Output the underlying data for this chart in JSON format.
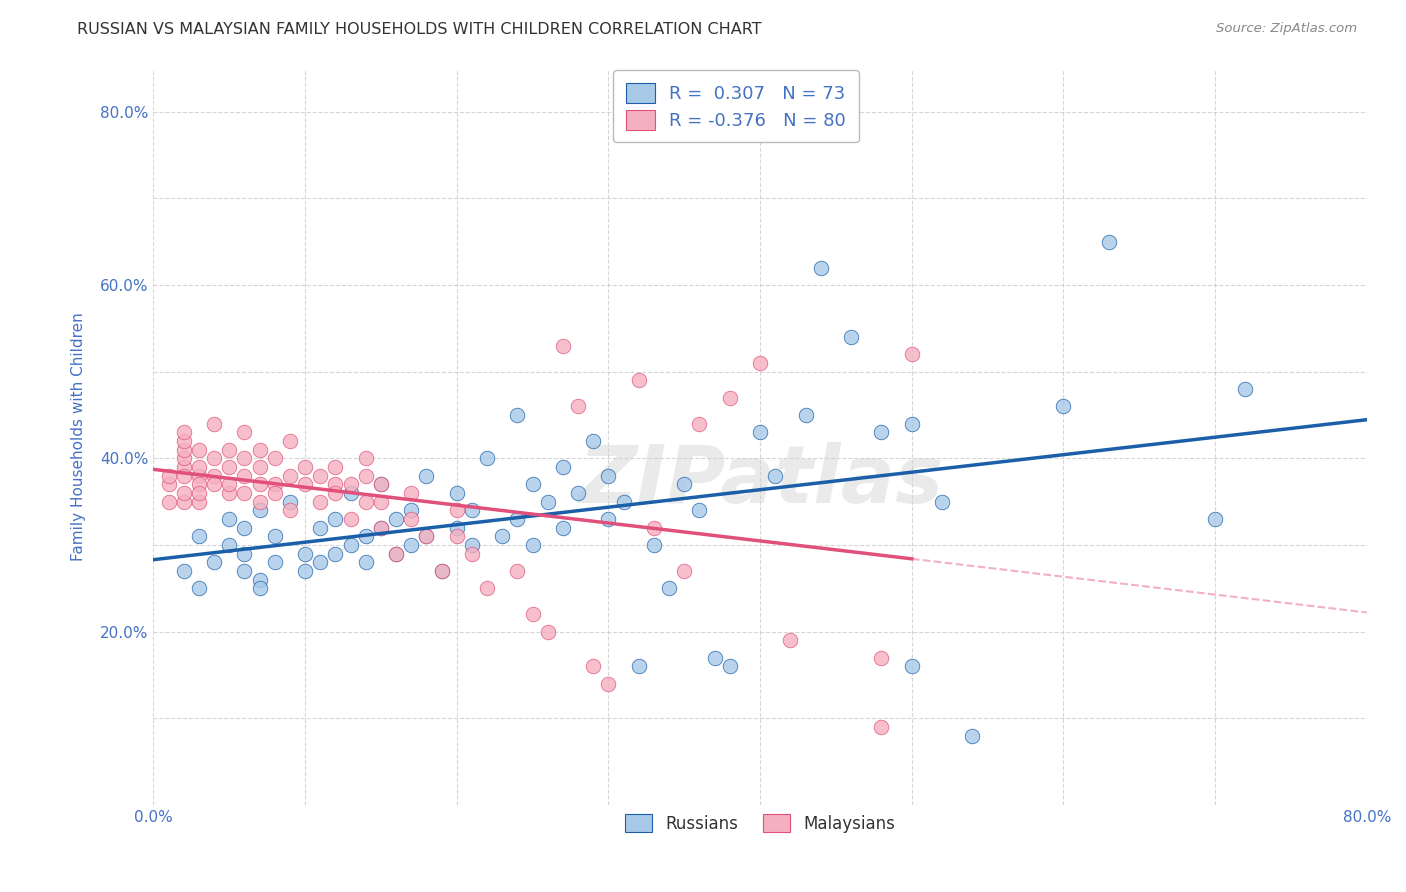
{
  "title": "RUSSIAN VS MALAYSIAN FAMILY HOUSEHOLDS WITH CHILDREN CORRELATION CHART",
  "source": "Source: ZipAtlas.com",
  "ylabel": "Family Households with Children",
  "xlim": [
    0.0,
    0.8
  ],
  "ylim": [
    0.0,
    0.85
  ],
  "russian_R": "0.307",
  "russian_N": "73",
  "malaysian_R": "-0.376",
  "malaysian_N": "80",
  "russian_color": "#a8c8e8",
  "russian_line_color": "#1a5fa8",
  "malaysian_color": "#f5b0c0",
  "malaysian_line_color": "#e0507a",
  "watermark": "ZIPatlas",
  "background_color": "#ffffff",
  "grid_color": "#cccccc",
  "title_color": "#333333",
  "axis_label_color": "#4472c4",
  "tick_label_color": "#4472c4",
  "legend_russian_label": "R =  0.307   N = 73",
  "legend_malaysian_label": "R = -0.376   N = 80",
  "russians_x": [
    0.02,
    0.03,
    0.04,
    0.05,
    0.05,
    0.06,
    0.06,
    0.07,
    0.07,
    0.08,
    0.08,
    0.09,
    0.1,
    0.1,
    0.11,
    0.11,
    0.12,
    0.12,
    0.13,
    0.13,
    0.14,
    0.14,
    0.15,
    0.15,
    0.16,
    0.16,
    0.17,
    0.17,
    0.18,
    0.18,
    0.19,
    0.2,
    0.2,
    0.21,
    0.21,
    0.22,
    0.23,
    0.24,
    0.24,
    0.25,
    0.25,
    0.26,
    0.27,
    0.27,
    0.28,
    0.29,
    0.3,
    0.3,
    0.31,
    0.32,
    0.33,
    0.34,
    0.35,
    0.36,
    0.37,
    0.38,
    0.4,
    0.41,
    0.43,
    0.44,
    0.46,
    0.48,
    0.5,
    0.5,
    0.52,
    0.54,
    0.6,
    0.63,
    0.7,
    0.72,
    0.06,
    0.07,
    0.03
  ],
  "russians_y": [
    0.27,
    0.31,
    0.28,
    0.3,
    0.33,
    0.27,
    0.29,
    0.26,
    0.34,
    0.28,
    0.31,
    0.35,
    0.27,
    0.29,
    0.28,
    0.32,
    0.29,
    0.33,
    0.3,
    0.36,
    0.28,
    0.31,
    0.32,
    0.37,
    0.29,
    0.33,
    0.3,
    0.34,
    0.31,
    0.38,
    0.27,
    0.32,
    0.36,
    0.3,
    0.34,
    0.4,
    0.31,
    0.33,
    0.45,
    0.37,
    0.3,
    0.35,
    0.32,
    0.39,
    0.36,
    0.42,
    0.33,
    0.38,
    0.35,
    0.16,
    0.3,
    0.25,
    0.37,
    0.34,
    0.17,
    0.16,
    0.43,
    0.38,
    0.45,
    0.62,
    0.54,
    0.43,
    0.44,
    0.16,
    0.35,
    0.08,
    0.46,
    0.65,
    0.33,
    0.48,
    0.32,
    0.25,
    0.25
  ],
  "malaysians_x": [
    0.01,
    0.01,
    0.01,
    0.02,
    0.02,
    0.02,
    0.02,
    0.02,
    0.02,
    0.02,
    0.02,
    0.03,
    0.03,
    0.03,
    0.03,
    0.03,
    0.03,
    0.04,
    0.04,
    0.04,
    0.04,
    0.05,
    0.05,
    0.05,
    0.05,
    0.06,
    0.06,
    0.06,
    0.06,
    0.07,
    0.07,
    0.07,
    0.07,
    0.08,
    0.08,
    0.08,
    0.09,
    0.09,
    0.09,
    0.1,
    0.1,
    0.11,
    0.11,
    0.12,
    0.12,
    0.12,
    0.13,
    0.13,
    0.14,
    0.14,
    0.14,
    0.15,
    0.15,
    0.15,
    0.16,
    0.17,
    0.17,
    0.18,
    0.19,
    0.2,
    0.2,
    0.21,
    0.22,
    0.24,
    0.25,
    0.26,
    0.27,
    0.28,
    0.29,
    0.3,
    0.32,
    0.33,
    0.35,
    0.36,
    0.38,
    0.4,
    0.42,
    0.48,
    0.48,
    0.5
  ],
  "malaysians_y": [
    0.37,
    0.38,
    0.35,
    0.39,
    0.4,
    0.35,
    0.36,
    0.38,
    0.41,
    0.42,
    0.43,
    0.38,
    0.37,
    0.39,
    0.41,
    0.35,
    0.36,
    0.38,
    0.4,
    0.37,
    0.44,
    0.36,
    0.39,
    0.41,
    0.37,
    0.38,
    0.4,
    0.36,
    0.43,
    0.37,
    0.39,
    0.41,
    0.35,
    0.37,
    0.4,
    0.36,
    0.38,
    0.42,
    0.34,
    0.37,
    0.39,
    0.38,
    0.35,
    0.37,
    0.39,
    0.36,
    0.33,
    0.37,
    0.35,
    0.38,
    0.4,
    0.32,
    0.35,
    0.37,
    0.29,
    0.33,
    0.36,
    0.31,
    0.27,
    0.31,
    0.34,
    0.29,
    0.25,
    0.27,
    0.22,
    0.2,
    0.53,
    0.46,
    0.16,
    0.14,
    0.49,
    0.32,
    0.27,
    0.44,
    0.47,
    0.51,
    0.19,
    0.17,
    0.09,
    0.52
  ]
}
